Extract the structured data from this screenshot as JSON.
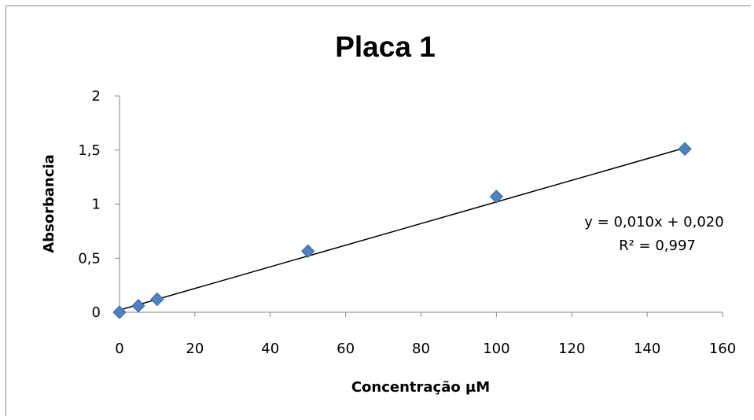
{
  "chart_data": {
    "type": "scatter",
    "title": "Placa 1",
    "xlabel": "Concentração µM",
    "ylabel": "Absorbancia",
    "xlim": [
      0,
      160
    ],
    "ylim": [
      0,
      2
    ],
    "x_ticks": [
      0,
      20,
      40,
      60,
      80,
      100,
      120,
      140,
      160
    ],
    "x_tick_labels": [
      "0",
      "20",
      "40",
      "60",
      "80",
      "100",
      "120",
      "140",
      "160"
    ],
    "y_ticks": [
      0,
      0.5,
      1,
      1.5,
      2
    ],
    "y_tick_labels": [
      "0",
      "0,5",
      "1",
      "1,5",
      "2"
    ],
    "grid": false,
    "legend": "none",
    "series": [
      {
        "points": [
          {
            "x": 0,
            "y": 0.0
          },
          {
            "x": 5,
            "y": 0.06
          },
          {
            "x": 10,
            "y": 0.12
          },
          {
            "x": 50,
            "y": 0.565
          },
          {
            "x": 100,
            "y": 1.07
          },
          {
            "x": 150,
            "y": 1.51
          }
        ],
        "marker": "diamond",
        "color": "#4f81bd"
      }
    ],
    "trendline": {
      "type": "linear",
      "slope": 0.01,
      "intercept": 0.02,
      "x_range": [
        0,
        150
      ],
      "color": "#000000",
      "equation_text": "y = 0,010x + 0,020",
      "r2_text": "R² = 0,997"
    }
  }
}
